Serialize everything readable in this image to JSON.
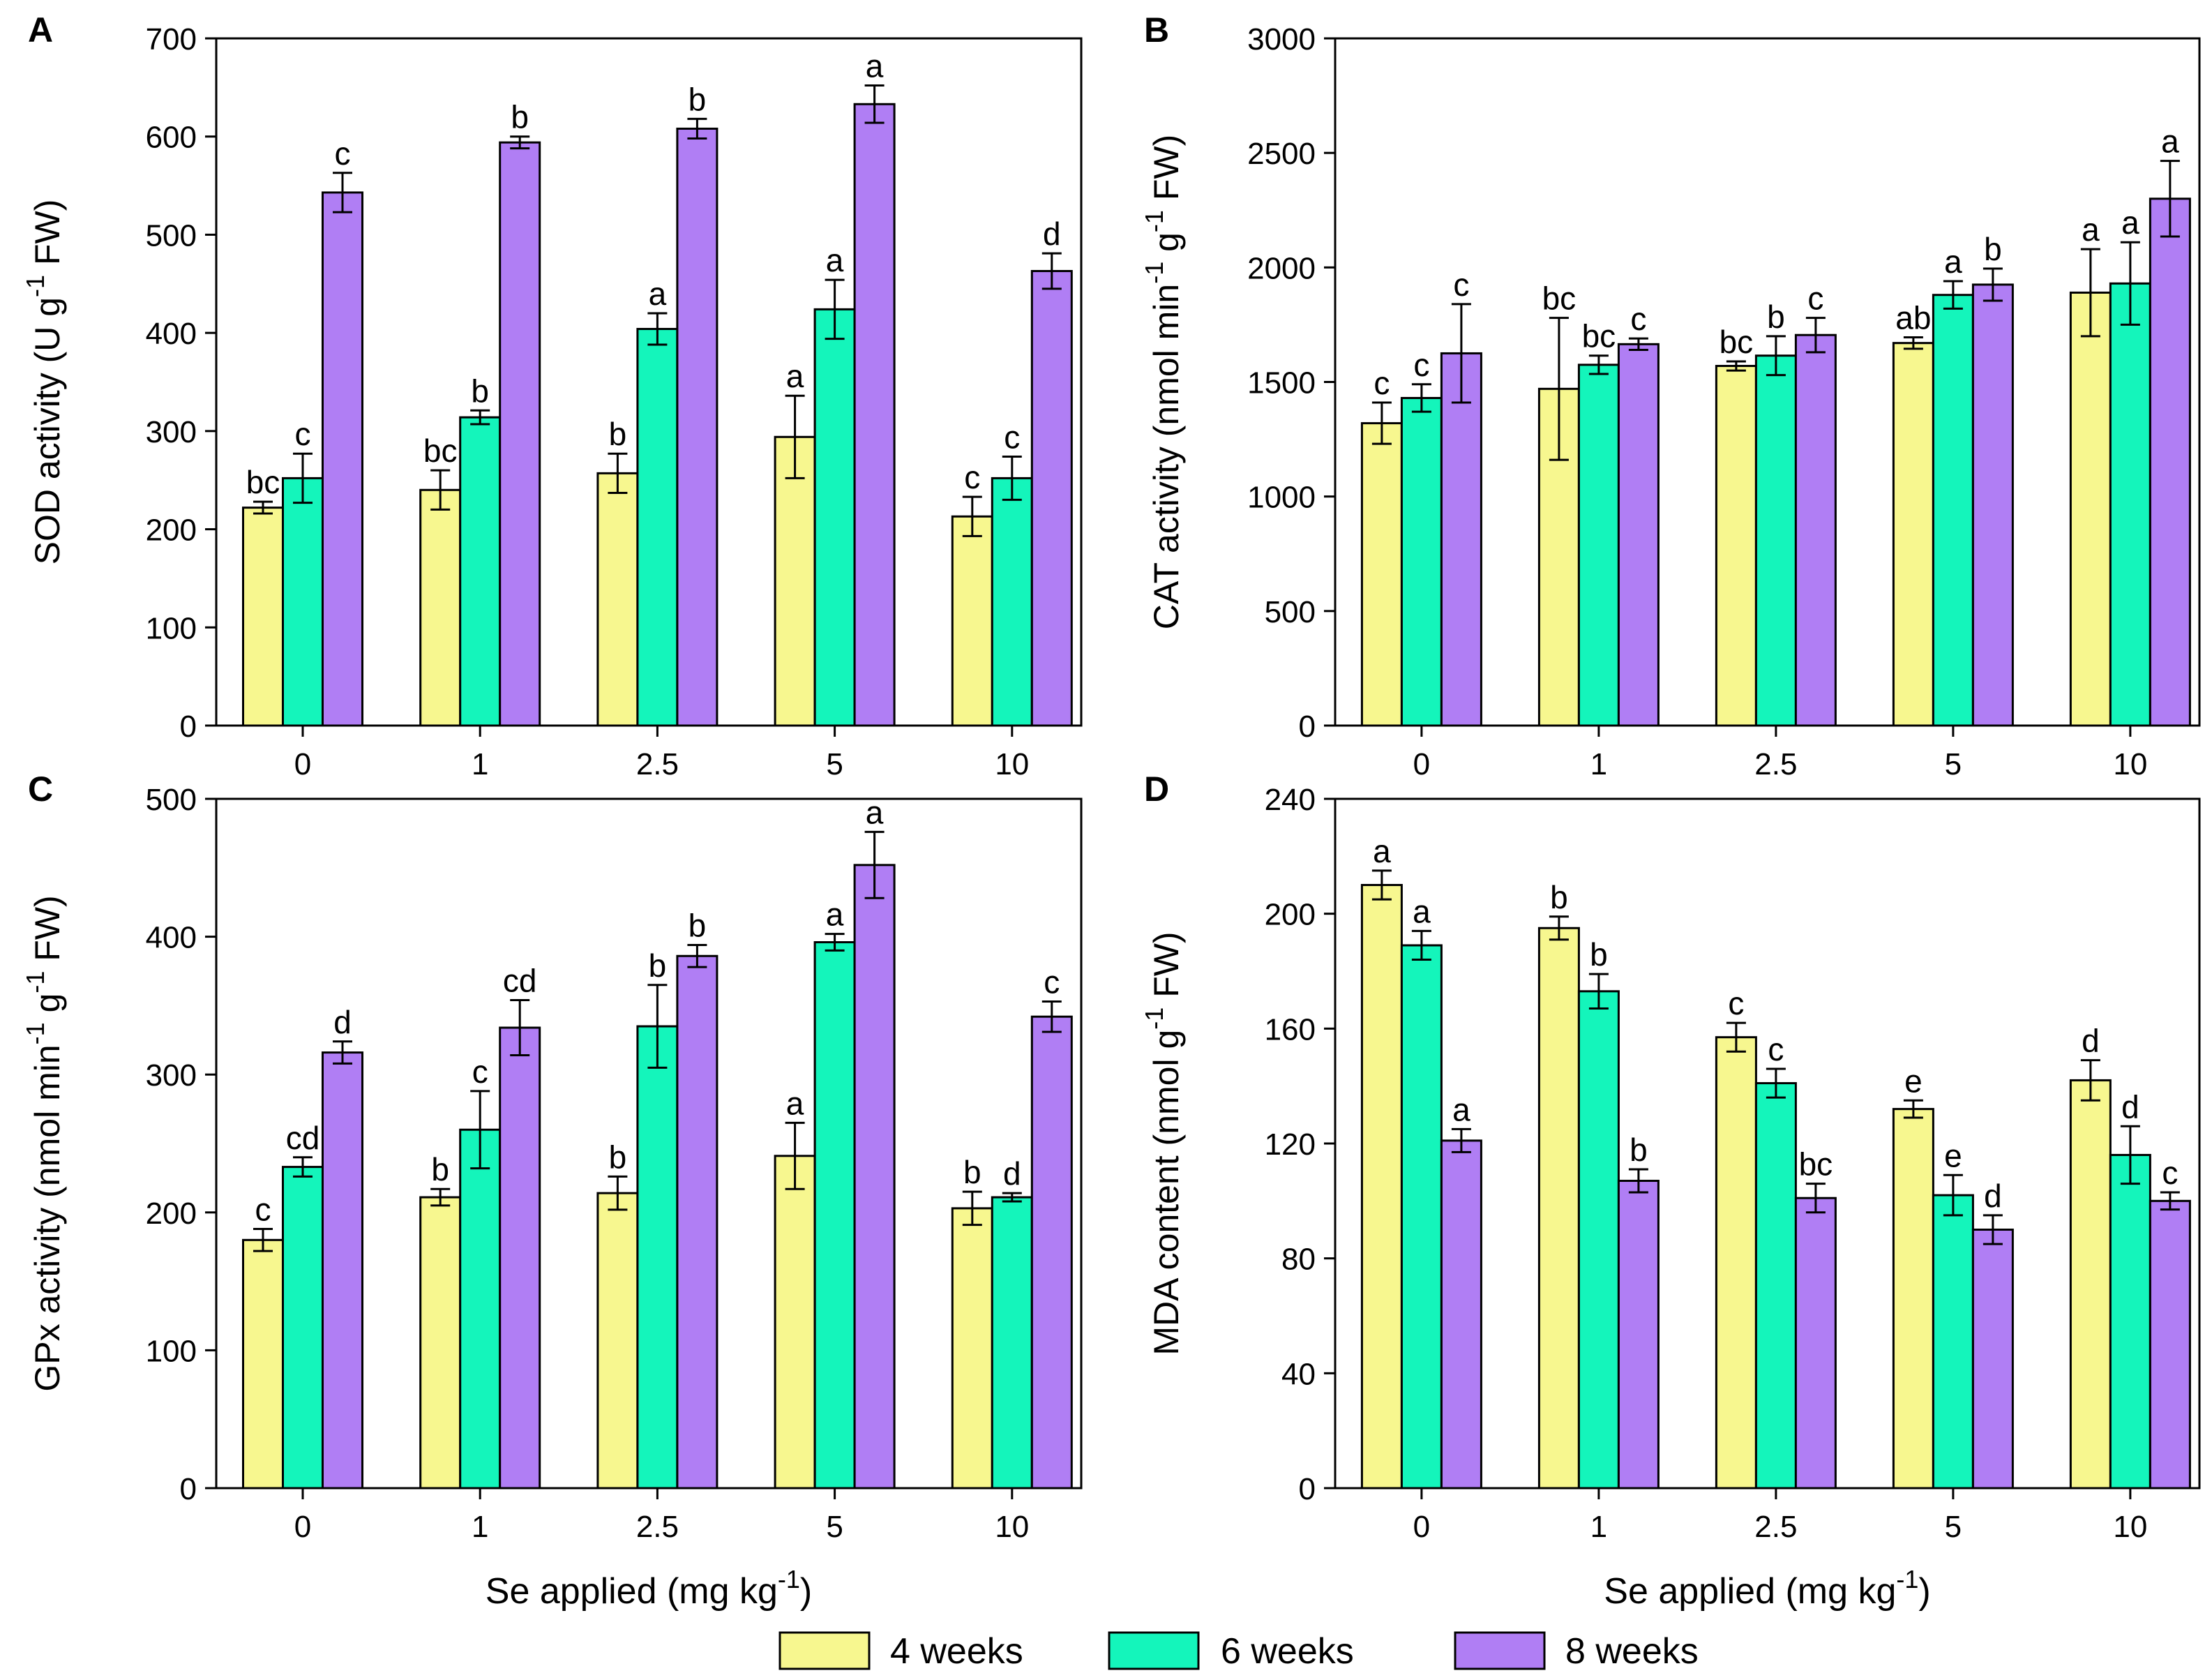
{
  "colors": {
    "4w": "#f7f78f",
    "6w": "#14f5bb",
    "8w": "#b07ef4",
    "stroke": "#000000"
  },
  "legend": [
    {
      "label": "4 weeks",
      "color": "#f7f78f"
    },
    {
      "label": "6 weeks",
      "color": "#14f5bb"
    },
    {
      "label": "8 weeks",
      "color": "#b07ef4"
    }
  ],
  "chart_data": [
    {
      "panel": "A",
      "type": "bar",
      "categories": [
        "0",
        "1",
        "2.5",
        "5",
        "10"
      ],
      "xlabel": "",
      "ylabel": "SOD activity (U g-1 FW)",
      "ylabel_parts": [
        "SOD activity (U g",
        "-1",
        " FW)"
      ],
      "ylim": [
        0,
        700
      ],
      "yticks": [
        0,
        100,
        200,
        300,
        400,
        500,
        600,
        700
      ],
      "series": [
        {
          "name": "4 weeks",
          "values": [
            222,
            240,
            257,
            294,
            213
          ],
          "errors": [
            6,
            20,
            20,
            42,
            20
          ],
          "letters": [
            "bc",
            "bc",
            "b",
            "a",
            "c"
          ]
        },
        {
          "name": "6 weeks",
          "values": [
            252,
            314,
            404,
            424,
            252
          ],
          "errors": [
            25,
            7,
            16,
            30,
            22
          ],
          "letters": [
            "c",
            "b",
            "a",
            "a",
            "c"
          ]
        },
        {
          "name": "8 weeks",
          "values": [
            543,
            594,
            608,
            633,
            463
          ],
          "errors": [
            20,
            6,
            10,
            19,
            18
          ],
          "letters": [
            "c",
            "b",
            "b",
            "a",
            "d"
          ]
        }
      ]
    },
    {
      "panel": "B",
      "type": "bar",
      "categories": [
        "0",
        "1",
        "2.5",
        "5",
        "10"
      ],
      "xlabel": "",
      "ylabel": "CAT activity (nmol min-1 g-1 FW)",
      "ylabel_parts": [
        "CAT activity (nmol min",
        "-1",
        " g",
        "-1",
        " FW)"
      ],
      "ylim": [
        0,
        3000
      ],
      "yticks": [
        0,
        500,
        1000,
        1500,
        2000,
        2500,
        3000
      ],
      "series": [
        {
          "name": "4 weeks",
          "values": [
            1320,
            1470,
            1570,
            1670,
            1890
          ],
          "errors": [
            90,
            310,
            20,
            25,
            190
          ],
          "letters": [
            "c",
            "bc",
            "bc",
            "ab",
            "a"
          ]
        },
        {
          "name": "6 weeks",
          "values": [
            1430,
            1575,
            1615,
            1880,
            1930
          ],
          "errors": [
            60,
            40,
            85,
            60,
            180
          ],
          "letters": [
            "c",
            "bc",
            "b",
            "a",
            "a"
          ]
        },
        {
          "name": "8 weeks",
          "values": [
            1625,
            1665,
            1705,
            1925,
            2300
          ],
          "errors": [
            215,
            25,
            75,
            70,
            165
          ],
          "letters": [
            "c",
            "c",
            "c",
            "b",
            "a"
          ]
        }
      ]
    },
    {
      "panel": "C",
      "type": "bar",
      "categories": [
        "0",
        "1",
        "2.5",
        "5",
        "10"
      ],
      "xlabel": "Se applied (mg kg-1)",
      "xlabel_parts": [
        "Se applied (mg kg",
        "-1",
        ")"
      ],
      "ylabel": "GPx activity (nmol min-1 g-1 FW)",
      "ylabel_parts": [
        "GPx activity (nmol min",
        "-1",
        " g",
        "-1",
        " FW)"
      ],
      "ylim": [
        0,
        500
      ],
      "yticks": [
        0,
        100,
        200,
        300,
        400,
        500
      ],
      "series": [
        {
          "name": "4 weeks",
          "values": [
            180,
            211,
            214,
            241,
            203
          ],
          "errors": [
            8,
            6,
            12,
            24,
            12
          ],
          "letters": [
            "c",
            "b",
            "b",
            "a",
            "b"
          ]
        },
        {
          "name": "6 weeks",
          "values": [
            233,
            260,
            335,
            396,
            211
          ],
          "errors": [
            7,
            28,
            30,
            6,
            3
          ],
          "letters": [
            "cd",
            "c",
            "b",
            "a",
            "d"
          ]
        },
        {
          "name": "8 weeks",
          "values": [
            316,
            334,
            386,
            452,
            342
          ],
          "errors": [
            8,
            20,
            8,
            24,
            11
          ],
          "letters": [
            "d",
            "cd",
            "b",
            "a",
            "c"
          ]
        }
      ]
    },
    {
      "panel": "D",
      "type": "bar",
      "categories": [
        "0",
        "1",
        "2.5",
        "5",
        "10"
      ],
      "xlabel": "Se applied (mg kg-1)",
      "xlabel_parts": [
        "Se applied (mg kg",
        "-1",
        ")"
      ],
      "ylabel": "MDA content (nmol g-1 FW)",
      "ylabel_parts": [
        "MDA content (nmol g",
        "-1",
        " FW)"
      ],
      "ylim": [
        0,
        240
      ],
      "yticks": [
        0,
        40,
        80,
        120,
        160,
        200,
        240
      ],
      "series": [
        {
          "name": "4 weeks",
          "values": [
            210,
            195,
            157,
            132,
            142
          ],
          "errors": [
            5,
            4,
            5,
            3,
            7
          ],
          "letters": [
            "a",
            "b",
            "c",
            "e",
            "d"
          ]
        },
        {
          "name": "6 weeks",
          "values": [
            189,
            173,
            141,
            102,
            116
          ],
          "errors": [
            5,
            6,
            5,
            7,
            10
          ],
          "letters": [
            "a",
            "b",
            "c",
            "e",
            "d"
          ]
        },
        {
          "name": "8 weeks",
          "values": [
            121,
            107,
            101,
            90,
            100
          ],
          "errors": [
            4,
            4,
            5,
            5,
            3
          ],
          "letters": [
            "a",
            "b",
            "bc",
            "d",
            "c"
          ]
        }
      ]
    }
  ]
}
